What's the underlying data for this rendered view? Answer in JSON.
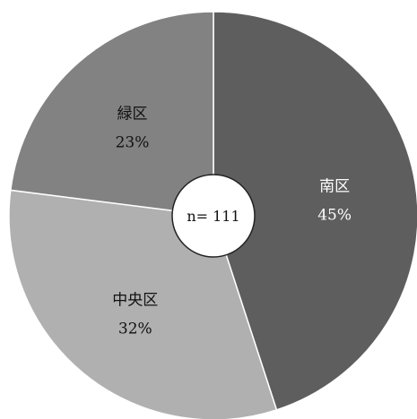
{
  "chart_data": {
    "type": "pie",
    "center_label": "n= 111",
    "slices": [
      {
        "label": "南区",
        "value": 45,
        "value_label": "45%",
        "color": "#5e5e5e",
        "text_color": "#ffffff"
      },
      {
        "label": "中央区",
        "value": 32,
        "value_label": "32%",
        "color": "#b0b0b0",
        "text_color": "#111111"
      },
      {
        "label": "緑区",
        "value": 23,
        "value_label": "23%",
        "color": "#828282",
        "text_color": "#111111"
      }
    ],
    "start": "top",
    "direction": "clockwise"
  }
}
